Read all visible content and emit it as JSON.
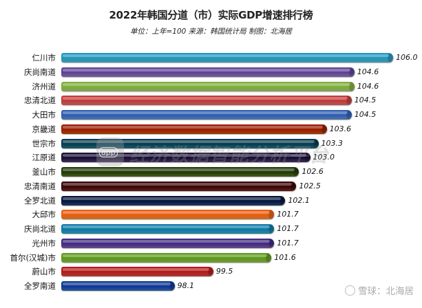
{
  "chart_data": {
    "type": "bar",
    "orientation": "horizontal",
    "title": "2022年韩国分道（市）实际GDP增速排行榜",
    "subtitle": "单位：上年=100  来源：韩国统计局 制图：北海居",
    "xlabel": "",
    "ylabel": "",
    "xlim": [
      94,
      106
    ],
    "grid": false,
    "legend": "none",
    "categories": [
      "仁川市",
      "庆尚南道",
      "济州道",
      "忠清北道",
      "大田市",
      "京畿道",
      "世宗市",
      "江原道",
      "釜山市",
      "忠清南道",
      "全罗北道",
      "大邱市",
      "庆尚北道",
      "光州市",
      "首尔(汉城)市",
      "蔚山市",
      "全罗南道"
    ],
    "values": [
      106.0,
      104.6,
      104.6,
      104.5,
      104.5,
      103.6,
      103.3,
      103.0,
      102.6,
      102.5,
      102.1,
      101.7,
      101.7,
      101.7,
      101.6,
      99.5,
      98.1
    ],
    "value_labels": [
      "106.0",
      "104.6",
      "104.6",
      "104.5",
      "104.5",
      "103.6",
      "103.3",
      "103.0",
      "102.6",
      "102.5",
      "102.1",
      "101.7",
      "101.7",
      "101.7",
      "101.6",
      "99.5",
      "98.1"
    ],
    "colors": [
      "#5bc4dc",
      "#9b83c4",
      "#b3d37a",
      "#e07a78",
      "#6d9bd6",
      "#c8560e",
      "#2a7b8f",
      "#4f3d74",
      "#5e7a2c",
      "#7a2a2a",
      "#2b4f7e",
      "#f59a40",
      "#3ab1cf",
      "#8367b6",
      "#9bc653",
      "#d84f4f",
      "#3c78c4"
    ]
  },
  "watermark": {
    "logo_text": "app",
    "text": "经济数据智能分析平台"
  },
  "footer": {
    "text": "雪球：北海居"
  }
}
